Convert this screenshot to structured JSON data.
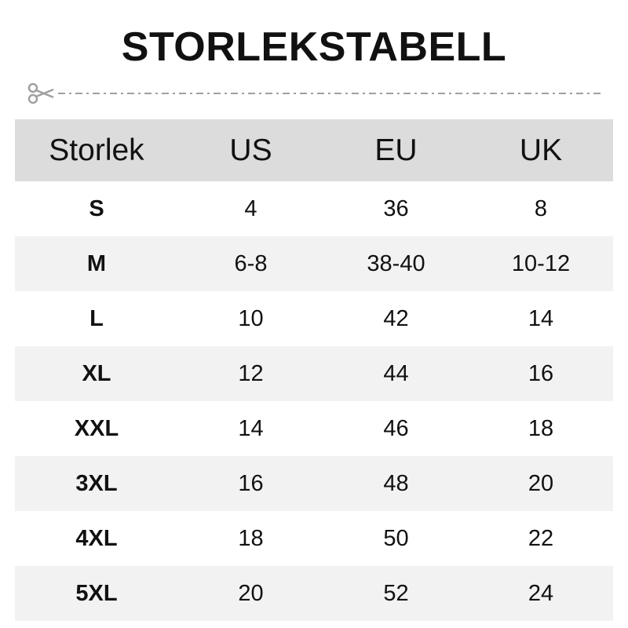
{
  "title": "STORLEKSTABELL",
  "cut_line": {
    "icon": "scissors-icon",
    "color": "#a0a0a0"
  },
  "colors": {
    "header_bg": "#dcdcdc",
    "alt_row_bg": "#f2f2f2"
  },
  "table": {
    "headers": [
      "Storlek",
      "US",
      "EU",
      "UK"
    ],
    "rows": [
      [
        "S",
        "4",
        "36",
        "8"
      ],
      [
        "M",
        "6-8",
        "38-40",
        "10-12"
      ],
      [
        "L",
        "10",
        "42",
        "14"
      ],
      [
        "XL",
        "12",
        "44",
        "16"
      ],
      [
        "XXL",
        "14",
        "46",
        "18"
      ],
      [
        "3XL",
        "16",
        "48",
        "20"
      ],
      [
        "4XL",
        "18",
        "50",
        "22"
      ],
      [
        "5XL",
        "20",
        "52",
        "24"
      ]
    ]
  }
}
